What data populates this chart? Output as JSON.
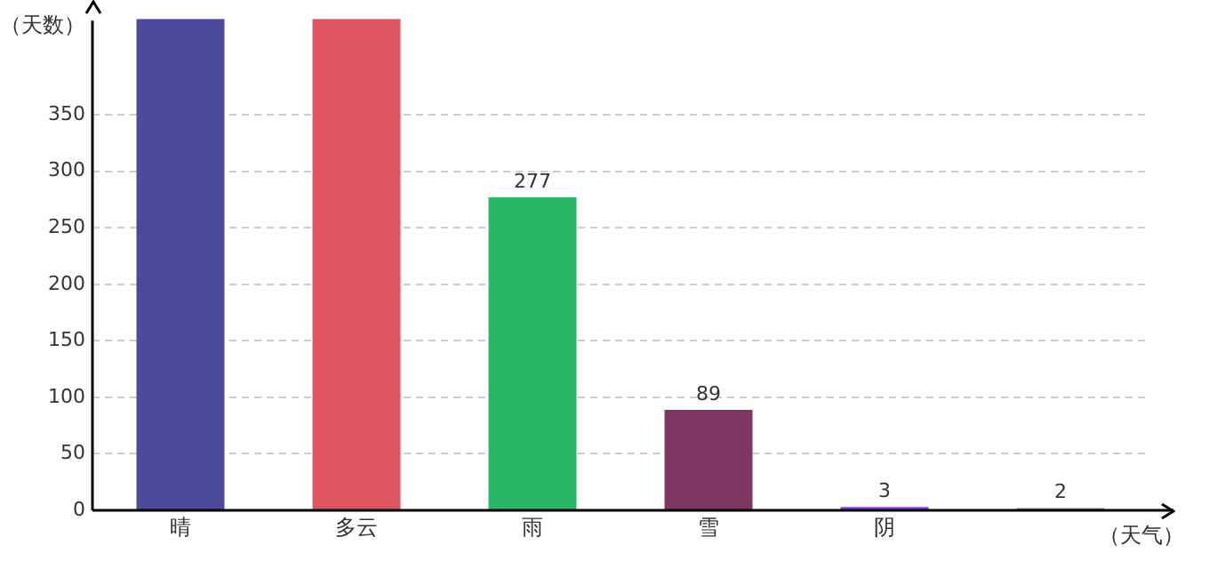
{
  "chart_data": {
    "type": "bar",
    "ylabel": "（天数）",
    "xlabel": "（天气）",
    "categories": [
      "晴",
      "多云",
      "雨",
      "雪",
      "阴",
      null
    ],
    "values": [
      435,
      435,
      277,
      89,
      3,
      2
    ],
    "colors": [
      "#4e4a9b",
      "#e05562",
      "#27b767",
      "#7e3663",
      "#8a3fe0",
      "#9a7a85"
    ],
    "value_labels": [
      null,
      null,
      "277",
      "89",
      "3",
      "2"
    ],
    "ylim": [
      0,
      435
    ],
    "yticks": [
      0,
      50,
      100,
      150,
      200,
      250,
      300,
      350
    ],
    "grid": "y",
    "legend": false
  }
}
